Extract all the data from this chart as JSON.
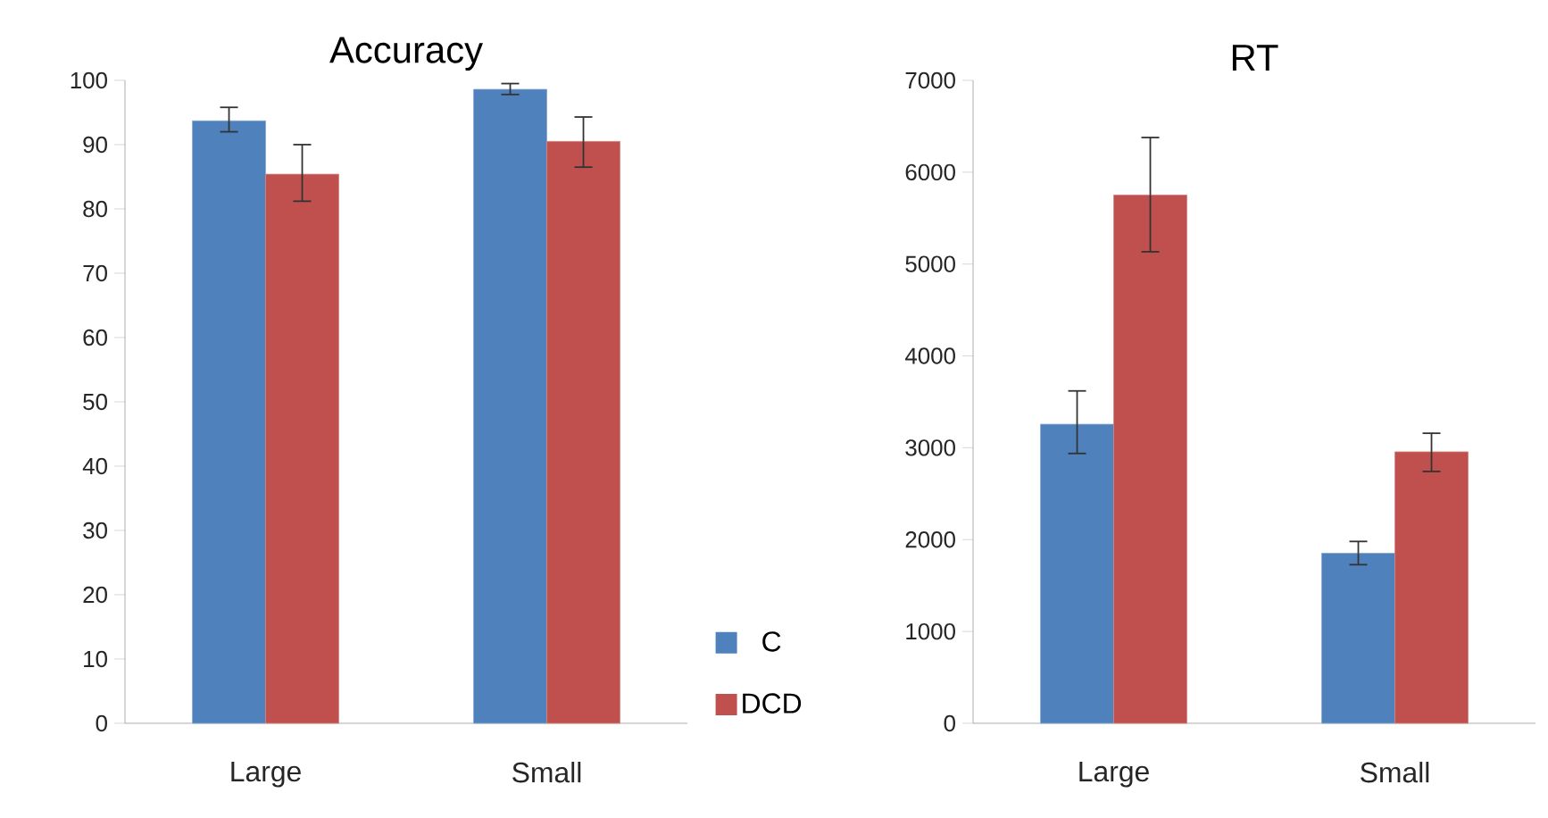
{
  "chart_data": [
    {
      "type": "bar",
      "title": "Accuracy",
      "categories": [
        "Large",
        "Small"
      ],
      "series": [
        {
          "name": "C",
          "color": "#4f81bd",
          "values": [
            93.7,
            98.6
          ],
          "errors": [
            [
              92.0,
              95.8
            ],
            [
              97.8,
              99.5
            ]
          ]
        },
        {
          "name": "DCD",
          "color": "#c0504d",
          "values": [
            85.4,
            90.5
          ],
          "errors": [
            [
              81.2,
              90.0
            ],
            [
              86.5,
              94.3
            ]
          ]
        }
      ],
      "ylim": [
        0,
        100
      ],
      "yticks": [
        0,
        10,
        20,
        30,
        40,
        50,
        60,
        70,
        80,
        90,
        100
      ],
      "legend": "right"
    },
    {
      "type": "bar",
      "title": "RT",
      "categories": [
        "Large",
        "Small"
      ],
      "series": [
        {
          "color": "#4f81bd",
          "values": [
            3256,
            1852
          ],
          "errors": [
            [
              2938,
              3619
            ],
            [
              1727,
              1980
            ]
          ]
        },
        {
          "color": "#c0504d",
          "values": [
            5752,
            2956
          ],
          "errors": [
            [
              5134,
              6378
            ],
            [
              2742,
              3158
            ]
          ]
        }
      ],
      "ylim": [
        0,
        7000
      ],
      "yticks": [
        0,
        1000,
        2000,
        3000,
        4000,
        5000,
        6000,
        7000
      ]
    }
  ]
}
